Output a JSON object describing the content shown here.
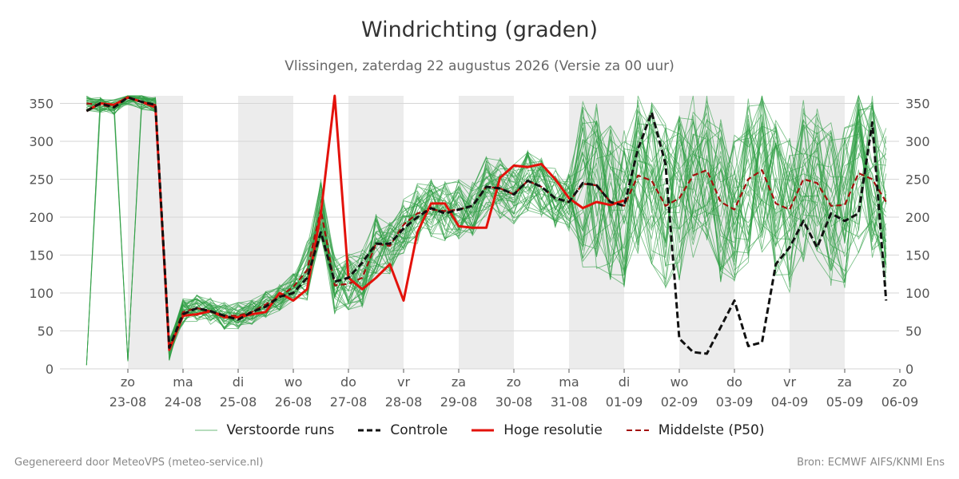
{
  "title": "Windrichting (graden)",
  "subtitle": "Vlissingen, zaterdag 22 augustus 2026 (Versie za 00 uur)",
  "footer_left": "Gegenereerd door MeteoVPS (meteo-service.nl)",
  "footer_right": "Bron: ECMWF AIFS/KNMI Ens",
  "legend": [
    {
      "key": "ensemble",
      "label": "Verstoorde runs",
      "color": "#2e9e44",
      "style": "thin"
    },
    {
      "key": "control",
      "label": "Controle",
      "color": "#111111",
      "style": "dashed"
    },
    {
      "key": "hres",
      "label": "Hoge resolutie",
      "color": "#e3120b",
      "style": "solid"
    },
    {
      "key": "median",
      "label": "Middelste (P50)",
      "color": "#a3100c",
      "style": "dashed"
    }
  ],
  "chart_data": {
    "type": "line",
    "title": "Windrichting (graden)",
    "ylim": [
      0,
      360
    ],
    "y_ticks": [
      0,
      50,
      100,
      150,
      200,
      250,
      300,
      350
    ],
    "grid": true,
    "right_axis": true,
    "legend_position": "bottom",
    "x_start": "2026-08-22 06:00",
    "x_step_hours": 6,
    "x_ticks": [
      {
        "day": "zo",
        "date": "23-08"
      },
      {
        "day": "ma",
        "date": "24-08"
      },
      {
        "day": "di",
        "date": "25-08"
      },
      {
        "day": "wo",
        "date": "26-08"
      },
      {
        "day": "do",
        "date": "27-08"
      },
      {
        "day": "vr",
        "date": "28-08"
      },
      {
        "day": "za",
        "date": "29-08"
      },
      {
        "day": "zo",
        "date": "30-08"
      },
      {
        "day": "ma",
        "date": "31-08"
      },
      {
        "day": "di",
        "date": "01-09"
      },
      {
        "day": "wo",
        "date": "02-09"
      },
      {
        "day": "do",
        "date": "03-09"
      },
      {
        "day": "vr",
        "date": "04-09"
      },
      {
        "day": "za",
        "date": "05-09"
      },
      {
        "day": "zo",
        "date": "06-09"
      }
    ],
    "shaded_bands": [
      [
        "2026-08-23 00:00",
        "2026-08-24 00:00"
      ],
      [
        "2026-08-25 00:00",
        "2026-08-26 00:00"
      ],
      [
        "2026-08-27 00:00",
        "2026-08-28 00:00"
      ],
      [
        "2026-08-29 00:00",
        "2026-08-30 00:00"
      ],
      [
        "2026-08-31 00:00",
        "2026-09-01 00:00"
      ],
      [
        "2026-09-02 00:00",
        "2026-09-03 00:00"
      ],
      [
        "2026-09-04 00:00",
        "2026-09-05 00:00"
      ]
    ],
    "series": [
      {
        "name": "Controle",
        "values": [
          340,
          350,
          345,
          358,
          352,
          348,
          28,
          72,
          80,
          76,
          70,
          65,
          75,
          82,
          95,
          100,
          120,
          180,
          115,
          120,
          140,
          165,
          165,
          185,
          200,
          212,
          205,
          210,
          215,
          240,
          238,
          230,
          248,
          240,
          225,
          220,
          245,
          242,
          220,
          215,
          290,
          338,
          270,
          40,
          22,
          20,
          55,
          90,
          30,
          35,
          138,
          160,
          195,
          160,
          205,
          195,
          205,
          325,
          90
        ]
      },
      {
        "name": "Hoge resolutie",
        "values": [
          340,
          350,
          348,
          358,
          352,
          345,
          25,
          70,
          72,
          76,
          68,
          68,
          72,
          75,
          100,
          90,
          105,
          205,
          360,
          120,
          105,
          120,
          138,
          90,
          180,
          218,
          218,
          188,
          186,
          186,
          252,
          268,
          266,
          270,
          250,
          225,
          212,
          220,
          216,
          222
        ]
      },
      {
        "name": "Middelste (P50)",
        "values": [
          350,
          348,
          345,
          358,
          352,
          348,
          28,
          75,
          80,
          76,
          70,
          70,
          75,
          85,
          95,
          108,
          130,
          210,
          110,
          112,
          120,
          165,
          162,
          190,
          205,
          210,
          208,
          210,
          215,
          240,
          238,
          230,
          248,
          240,
          225,
          220,
          244,
          242,
          220,
          215,
          255,
          248,
          215,
          225,
          255,
          262,
          220,
          210,
          250,
          262,
          218,
          210,
          250,
          245,
          215,
          216,
          258,
          250,
          220
        ]
      }
    ]
  }
}
